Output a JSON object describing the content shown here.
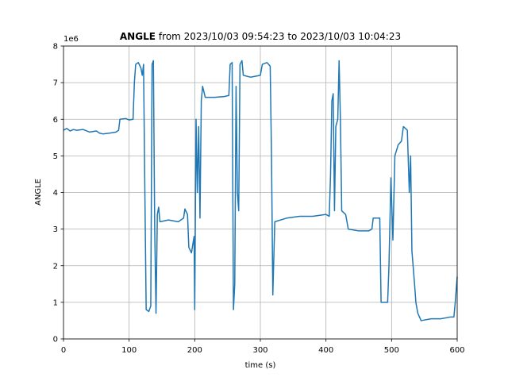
{
  "chart_data": {
    "type": "line",
    "title": {
      "bold": "ANGLE",
      "rest": "from 2023/10/03 09:54:23 to 2023/10/03 10:04:23"
    },
    "xlabel": "time (s)",
    "ylabel": "ANGLE",
    "offset_text": "1e6",
    "color": "#1f77b4",
    "grid": true,
    "xlim": [
      0,
      600
    ],
    "ylim": [
      0,
      8
    ],
    "xticks": [
      0,
      100,
      200,
      300,
      400,
      500,
      600
    ],
    "yticks": [
      0,
      1,
      2,
      3,
      4,
      5,
      6,
      7,
      8
    ],
    "x": [
      0,
      5,
      10,
      15,
      20,
      30,
      40,
      50,
      55,
      60,
      70,
      80,
      84,
      86,
      95,
      100,
      106,
      108,
      110,
      114,
      118,
      120,
      122,
      124,
      126,
      130,
      133,
      135,
      137,
      139,
      141,
      143,
      145,
      147,
      160,
      175,
      183,
      185,
      189,
      191,
      195,
      199,
      200,
      202,
      204,
      206,
      208,
      210,
      212,
      216,
      230,
      245,
      252,
      254,
      257,
      259,
      261,
      263,
      265,
      267,
      269,
      272,
      274,
      285,
      300,
      303,
      310,
      315,
      317,
      319,
      322,
      340,
      360,
      380,
      400,
      405,
      407,
      409,
      411,
      413,
      415,
      418,
      420,
      422,
      424,
      430,
      434,
      450,
      465,
      470,
      472,
      482,
      484,
      494,
      496,
      499,
      502,
      505,
      510,
      515,
      518,
      524,
      527,
      529,
      531,
      535,
      537,
      540,
      545,
      560,
      575,
      590,
      595,
      597,
      600
    ],
    "values": [
      5.7,
      5.75,
      5.68,
      5.72,
      5.7,
      5.72,
      5.65,
      5.68,
      5.62,
      5.6,
      5.62,
      5.65,
      5.7,
      6.0,
      6.02,
      5.98,
      6.0,
      7.0,
      7.5,
      7.55,
      7.4,
      7.2,
      7.5,
      4.0,
      0.8,
      0.75,
      0.9,
      7.5,
      7.6,
      3.0,
      0.7,
      3.4,
      3.6,
      3.2,
      3.25,
      3.2,
      3.3,
      3.55,
      3.4,
      2.5,
      2.35,
      2.8,
      0.8,
      6.0,
      4.0,
      5.8,
      3.3,
      6.5,
      6.9,
      6.6,
      6.6,
      6.62,
      6.65,
      7.5,
      7.55,
      0.8,
      1.5,
      6.9,
      4.0,
      3.5,
      7.5,
      7.6,
      7.2,
      7.15,
      7.2,
      7.5,
      7.55,
      7.45,
      5.0,
      1.2,
      3.2,
      3.3,
      3.35,
      3.35,
      3.4,
      3.35,
      4.5,
      6.5,
      6.7,
      3.5,
      5.8,
      6.0,
      7.6,
      6.0,
      3.5,
      3.4,
      3.0,
      2.95,
      2.95,
      3.0,
      3.3,
      3.3,
      1.0,
      1.0,
      2.0,
      4.4,
      2.7,
      5.0,
      5.3,
      5.4,
      5.8,
      5.7,
      4.0,
      5.0,
      2.4,
      1.5,
      1.0,
      0.7,
      0.5,
      0.55,
      0.55,
      0.6,
      0.6,
      1.0,
      1.7
    ]
  }
}
